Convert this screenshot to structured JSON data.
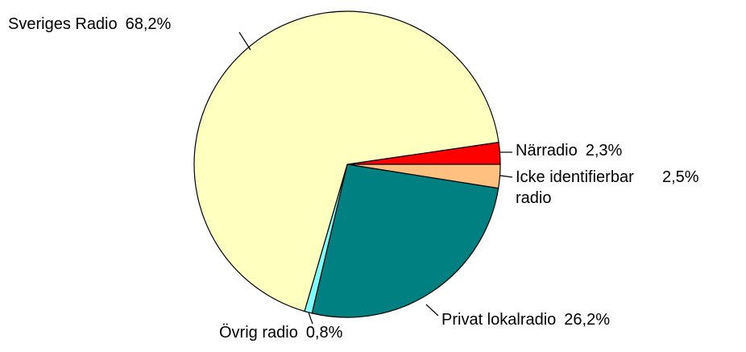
{
  "chart_data": {
    "type": "pie",
    "categories": [
      "Närradio",
      "Icke identifierbar radio",
      "Privat lokalradio",
      "Övrig radio",
      "Sveriges Radio"
    ],
    "values": [
      2.3,
      2.5,
      26.2,
      0.8,
      68.2
    ],
    "value_labels": [
      "2,3%",
      "2,5%",
      "26,2%",
      "0,8%",
      "68,2%"
    ],
    "colors": [
      "#ff0000",
      "#ffc080",
      "#008080",
      "#80ffff",
      "#ffffc0"
    ]
  }
}
